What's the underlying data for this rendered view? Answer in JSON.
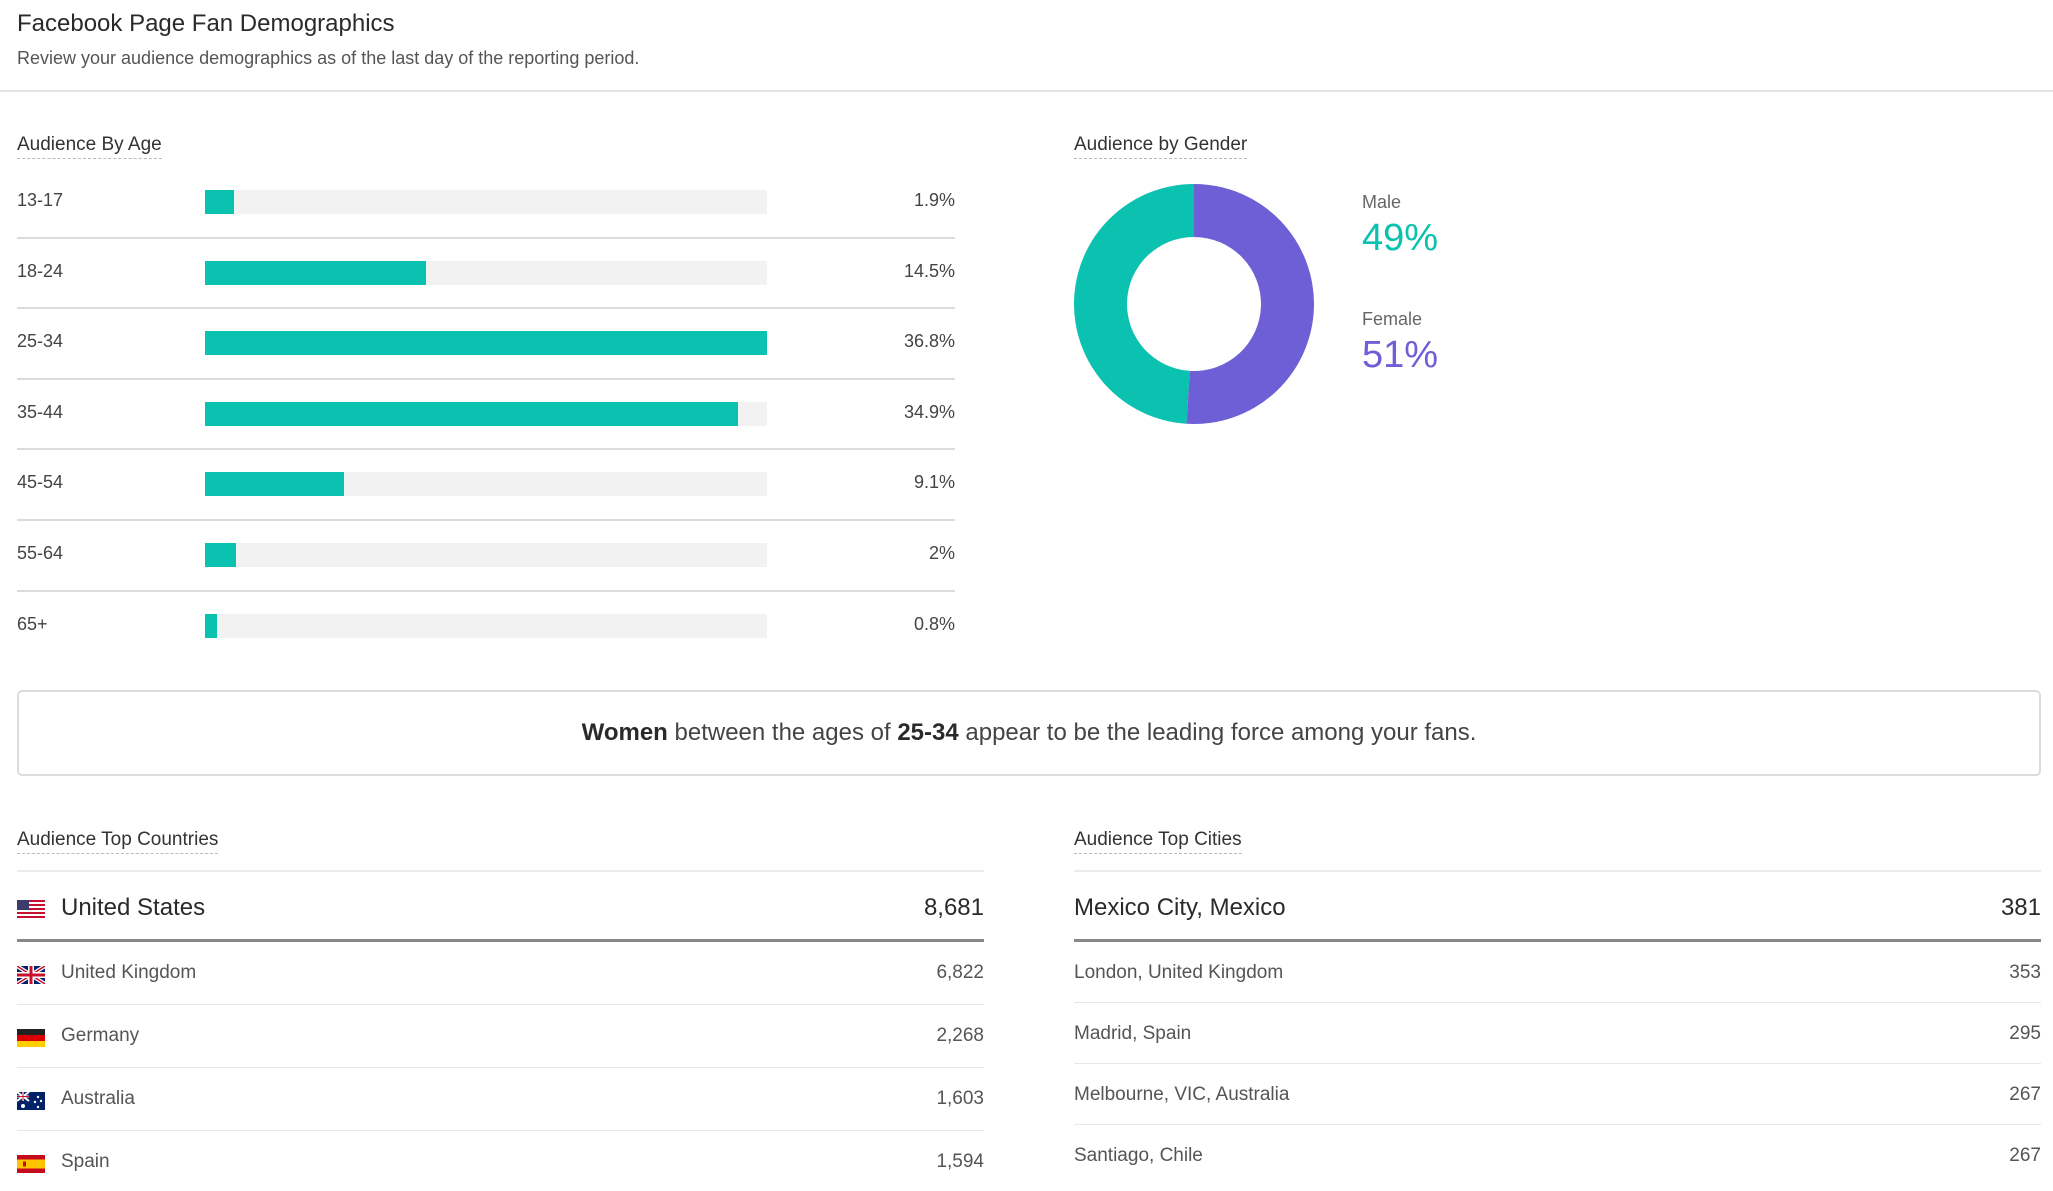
{
  "header": {
    "title": "Facebook Page Fan Demographics",
    "subtitle": "Review your audience demographics as of the last day of the reporting period."
  },
  "age": {
    "title": "Audience By Age",
    "max_percent": 36.8,
    "rows": [
      {
        "label": "13-17",
        "percent": 1.9,
        "value": "1.9%"
      },
      {
        "label": "18-24",
        "percent": 14.5,
        "value": "14.5%"
      },
      {
        "label": "25-34",
        "percent": 36.8,
        "value": "36.8%"
      },
      {
        "label": "35-44",
        "percent": 34.9,
        "value": "34.9%"
      },
      {
        "label": "45-54",
        "percent": 9.1,
        "value": "9.1%"
      },
      {
        "label": "55-64",
        "percent": 2,
        "value": "2%"
      },
      {
        "label": "65+",
        "percent": 0.8,
        "value": "0.8%"
      }
    ]
  },
  "gender": {
    "title": "Audience by Gender",
    "male": {
      "label": "Male",
      "value": "49%",
      "percent": 49,
      "color": "#0bc1b0"
    },
    "female": {
      "label": "Female",
      "value": "51%",
      "percent": 51,
      "color": "#6f5fd6"
    }
  },
  "insight": {
    "gender": "Women",
    "middle": " between the ages of ",
    "age_range": "25-34",
    "end": " appear to be the leading force among your fans."
  },
  "countries": {
    "title": "Audience Top Countries",
    "rows": [
      {
        "flag": "us-flag-icon",
        "name": "United States",
        "value": "8,681"
      },
      {
        "flag": "uk-flag-icon",
        "name": "United Kingdom",
        "value": "6,822"
      },
      {
        "flag": "germany-flag-icon",
        "name": "Germany",
        "value": "2,268"
      },
      {
        "flag": "australia-flag-icon",
        "name": "Australia",
        "value": "1,603"
      },
      {
        "flag": "spain-flag-icon",
        "name": "Spain",
        "value": "1,594"
      }
    ]
  },
  "cities": {
    "title": "Audience Top Cities",
    "rows": [
      {
        "name": "Mexico City, Mexico",
        "value": "381"
      },
      {
        "name": "London, United Kingdom",
        "value": "353"
      },
      {
        "name": "Madrid, Spain",
        "value": "295"
      },
      {
        "name": "Melbourne, VIC, Australia",
        "value": "267"
      },
      {
        "name": "Santiago, Chile",
        "value": "267"
      }
    ]
  }
}
